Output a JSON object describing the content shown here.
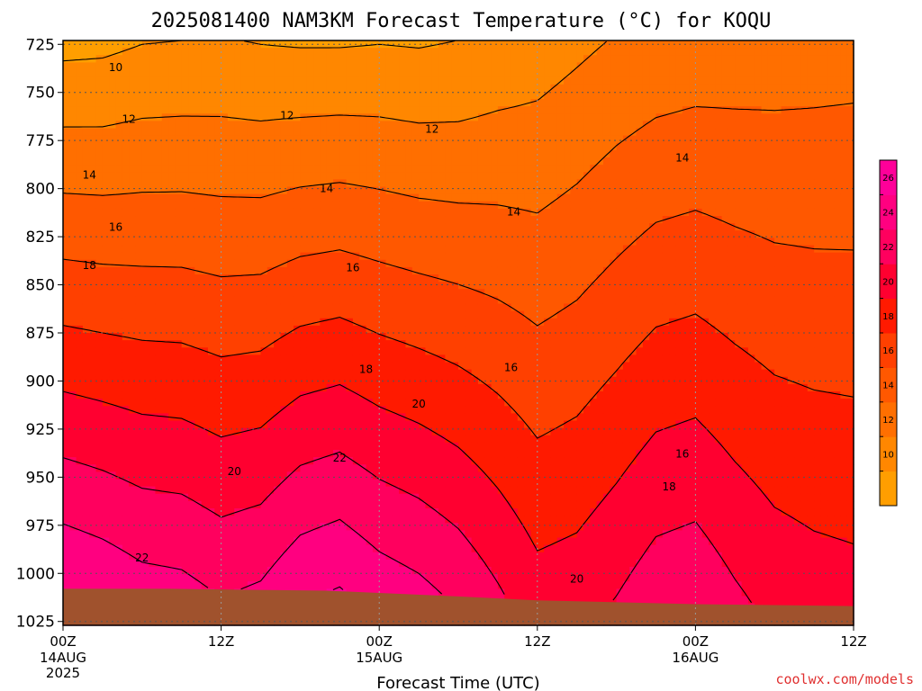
{
  "title": "2025081400 NAM3KM Forecast Temperature (°C) for KOQU",
  "credit": "coolwx.com/models",
  "chart_data": {
    "type": "heatmap",
    "title": "2025081400 NAM3KM Forecast Temperature (°C) for KOQU",
    "xlabel": "Forecast Time (UTC)",
    "ylabel": "",
    "x_ticks": [
      {
        "hour": 0,
        "label": "00Z",
        "sub1": "14AUG",
        "sub2": "2025"
      },
      {
        "hour": 12,
        "label": "12Z",
        "sub1": "",
        "sub2": ""
      },
      {
        "hour": 24,
        "label": "00Z",
        "sub1": "15AUG",
        "sub2": ""
      },
      {
        "hour": 36,
        "label": "12Z",
        "sub1": "",
        "sub2": ""
      },
      {
        "hour": 48,
        "label": "00Z",
        "sub1": "16AUG",
        "sub2": ""
      },
      {
        "hour": 60,
        "label": "12Z",
        "sub1": "",
        "sub2": ""
      }
    ],
    "xlim": [
      0,
      60
    ],
    "y_ticks": [
      725,
      750,
      775,
      800,
      825,
      850,
      875,
      900,
      925,
      950,
      975,
      1000,
      1025
    ],
    "ylim": [
      723,
      1027
    ],
    "grid": true,
    "colorbar": {
      "levels": [
        8,
        10,
        12,
        14,
        16,
        18,
        20,
        22,
        24,
        26,
        28
      ],
      "labels": [
        10,
        12,
        14,
        16,
        18,
        20,
        22,
        24,
        26
      ],
      "colors": [
        "#ff9e00",
        "#ff8700",
        "#ff6f00",
        "#ff5800",
        "#ff4000",
        "#ff1a00",
        "#ff0030",
        "#ff005e",
        "#ff0080",
        "#ff0099"
      ]
    },
    "contour_labels": [
      {
        "value": 10,
        "hour": 4,
        "p": 737
      },
      {
        "value": 12,
        "hour": 5,
        "p": 764
      },
      {
        "value": 12,
        "hour": 17,
        "p": 762
      },
      {
        "value": 12,
        "hour": 28,
        "p": 769
      },
      {
        "value": 14,
        "hour": 2,
        "p": 793
      },
      {
        "value": 14,
        "hour": 20,
        "p": 800
      },
      {
        "value": 14,
        "hour": 34.2,
        "p": 812
      },
      {
        "value": 14,
        "hour": 47,
        "p": 784
      },
      {
        "value": 16,
        "hour": 4,
        "p": 820
      },
      {
        "value": 16,
        "hour": 22,
        "p": 841
      },
      {
        "value": 16,
        "hour": 34,
        "p": 893
      },
      {
        "value": 16,
        "hour": 47,
        "p": 938
      },
      {
        "value": 18,
        "hour": 2,
        "p": 840
      },
      {
        "value": 18,
        "hour": 23,
        "p": 894
      },
      {
        "value": 18,
        "hour": 46,
        "p": 955
      },
      {
        "value": 20,
        "hour": 13,
        "p": 947
      },
      {
        "value": 20,
        "hour": 27,
        "p": 912
      },
      {
        "value": 20,
        "hour": 39,
        "p": 1003
      },
      {
        "value": 22,
        "hour": 6,
        "p": 992
      },
      {
        "value": 22,
        "hour": 21,
        "p": 940
      }
    ],
    "profile": [
      {
        "hour": 0,
        "t725": 9.5,
        "t1000": 25.5
      },
      {
        "hour": 3,
        "t725": 9.6,
        "t1000": 25.0
      },
      {
        "hour": 6,
        "t725": 10.0,
        "t1000": 24.3
      },
      {
        "hour": 9,
        "t725": 10.1,
        "t1000": 24.1
      },
      {
        "hour": 12,
        "t725": 10.2,
        "t1000": 23.4
      },
      {
        "hour": 15,
        "t725": 10.0,
        "t1000": 23.8
      },
      {
        "hour": 18,
        "t725": 9.9,
        "t1000": 25.1
      },
      {
        "hour": 21,
        "t725": 9.9,
        "t1000": 25.6
      },
      {
        "hour": 24,
        "t725": 10.0,
        "t1000": 24.6
      },
      {
        "hour": 27,
        "t725": 9.9,
        "t1000": 24.0
      },
      {
        "hour": 30,
        "t725": 10.1,
        "t1000": 23.1
      },
      {
        "hour": 33,
        "t725": 10.6,
        "t1000": 21.8
      },
      {
        "hour": 36,
        "t725": 11.0,
        "t1000": 20.4
      },
      {
        "hour": 39,
        "t725": 11.6,
        "t1000": 20.7
      },
      {
        "hour": 42,
        "t725": 12.2,
        "t1000": 21.6
      },
      {
        "hour": 45,
        "t725": 12.6,
        "t1000": 22.7
      },
      {
        "hour": 48,
        "t725": 12.8,
        "t1000": 23.0
      },
      {
        "hour": 51,
        "t725": 12.9,
        "t1000": 21.9
      },
      {
        "hour": 54,
        "t725": 13.0,
        "t1000": 21.0
      },
      {
        "hour": 57,
        "t725": 13.1,
        "t1000": 20.6
      },
      {
        "hour": 60,
        "t725": 13.2,
        "t1000": 20.4
      }
    ],
    "ground_pressure": [
      {
        "hour": 0,
        "p": 1008
      },
      {
        "hour": 8,
        "p": 1008
      },
      {
        "hour": 20,
        "p": 1009
      },
      {
        "hour": 30,
        "p": 1012
      },
      {
        "hour": 36,
        "p": 1014
      },
      {
        "hour": 48,
        "p": 1016
      },
      {
        "hour": 60,
        "p": 1017
      }
    ],
    "colors": {
      "ground": "#a0522d",
      "contour": "#000000",
      "grid": "#555555"
    }
  }
}
